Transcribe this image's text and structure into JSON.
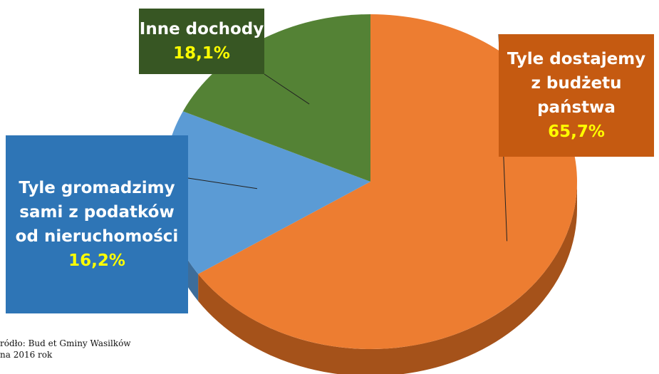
{
  "chart_data": {
    "type": "pie",
    "slices": [
      {
        "key": "budzet",
        "label_lines": [
          "Tyle dostajemy",
          "z budżetu",
          "państwa"
        ],
        "value": 65.7,
        "value_label": "65,7%",
        "color": "#ed7d31",
        "side_color": "#a5521a",
        "box_color": "#c55a11"
      },
      {
        "key": "podatki",
        "label_lines": [
          "Tyle gromadzimy",
          "sami z podatków",
          "od nieruchomości"
        ],
        "value": 16.2,
        "value_label": "16,2%",
        "color": "#5b9bd5",
        "side_color": "#3d6d9a",
        "box_color": "#2e75b6"
      },
      {
        "key": "inne",
        "label_lines": [
          "Inne dochody"
        ],
        "value": 18.1,
        "value_label": "18,1%",
        "color": "#548235",
        "side_color": "#3a5c24",
        "box_color": "#375623"
      }
    ],
    "value_label_color": "#ffff00"
  },
  "source": {
    "line1": "ródło:  Bud  et Gminy Wasilków",
    "line2": "na 2016 rok"
  }
}
